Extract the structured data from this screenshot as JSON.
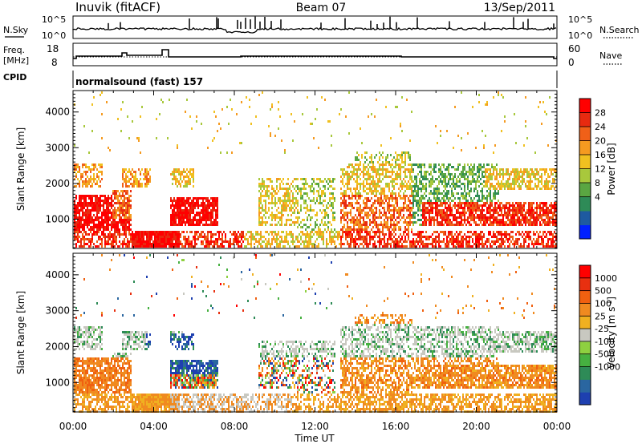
{
  "header": {
    "station": "Inuvik (fitACF)",
    "beam": "Beam 07",
    "date": "13/Sep/2011"
  },
  "panels": {
    "nsky_label": "N.Sky",
    "nsearch_label": "N.Search",
    "noise_ticks": [
      "10^5",
      "10^0"
    ],
    "freq_label": "Freq.",
    "freq_unit": "[MHz]",
    "freq_ticks": [
      "18",
      "8"
    ],
    "nave_label": "Nave",
    "nave_ticks": [
      "60",
      "0"
    ],
    "cpid_label": "CPID",
    "cpid_value": "normalsound (fast) 157"
  },
  "colorbars": {
    "power": {
      "label": "Power [dB]",
      "ticks": [
        "28",
        "24",
        "20",
        "16",
        "12",
        "8",
        "4"
      ],
      "colors": [
        "#0020ff",
        "#1e5aa0",
        "#2e8b57",
        "#5aa642",
        "#a8c83c",
        "#f0c020",
        "#f59a20",
        "#f06018",
        "#e82a10",
        "#ff0000"
      ]
    },
    "velocity": {
      "label": "Velocity [m s",
      "label_sup": "-1",
      "label_end": "]",
      "ticks": [
        "1000",
        "500",
        "100",
        "25",
        "-25",
        "-100",
        "-500",
        "-1000"
      ],
      "colors": [
        "#1e40b0",
        "#2a66a0",
        "#2e8b57",
        "#46b040",
        "#8ed040",
        "#c8c8c0",
        "#f0b020",
        "#f08a20",
        "#f06010",
        "#e83010",
        "#ff0000"
      ]
    }
  },
  "chart_data": [
    {
      "type": "heatmap",
      "title": "",
      "xlabel": "",
      "ylabel": "Slant Range [km]",
      "quantity": "Power [dB]",
      "x_ticks": [
        "00:00",
        "04:00",
        "08:00",
        "12:00",
        "16:00",
        "20:00",
        "00:00"
      ],
      "xlim_hours": [
        0,
        24
      ],
      "y_ticks": [
        1000,
        2000,
        3000,
        4000
      ],
      "ylim": [
        180,
        4600
      ],
      "color_range": [
        0,
        30
      ]
    },
    {
      "type": "heatmap",
      "title": "",
      "xlabel": "Time UT",
      "ylabel": "Slant Range [km]",
      "quantity": "Velocity [m s-1]",
      "x_ticks": [
        "00:00",
        "04:00",
        "08:00",
        "12:00",
        "16:00",
        "20:00",
        "00:00"
      ],
      "xlim_hours": [
        0,
        24
      ],
      "y_ticks": [
        1000,
        2000,
        3000,
        4000
      ],
      "ylim": [
        180,
        4600
      ],
      "color_range": [
        -1000,
        1000
      ]
    }
  ]
}
